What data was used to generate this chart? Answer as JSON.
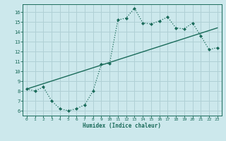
{
  "xlabel": "Humidex (Indice chaleur)",
  "bg_color": "#cce8ec",
  "grid_color": "#b0d0d5",
  "line_color": "#1a6b5a",
  "xlim": [
    -0.5,
    23.5
  ],
  "ylim": [
    5.5,
    16.8
  ],
  "xticks": [
    0,
    1,
    2,
    3,
    4,
    5,
    6,
    7,
    8,
    9,
    10,
    11,
    12,
    13,
    14,
    15,
    16,
    17,
    18,
    19,
    20,
    21,
    22,
    23
  ],
  "yticks": [
    6,
    7,
    8,
    9,
    10,
    11,
    12,
    13,
    14,
    15,
    16
  ],
  "line1_x": [
    0,
    1,
    2,
    3,
    4,
    5,
    6,
    7,
    8,
    9,
    10,
    11,
    12,
    13,
    14,
    15,
    16,
    17,
    18,
    19,
    20,
    21,
    22,
    23
  ],
  "line1_y": [
    8.2,
    8.0,
    8.4,
    7.0,
    6.2,
    6.0,
    6.2,
    6.6,
    8.0,
    10.7,
    10.8,
    15.2,
    15.4,
    16.4,
    14.9,
    14.8,
    15.1,
    15.5,
    14.4,
    14.3,
    14.9,
    13.6,
    12.2,
    12.4
  ],
  "line2_x": [
    0,
    23
  ],
  "line2_y": [
    8.2,
    14.4
  ]
}
